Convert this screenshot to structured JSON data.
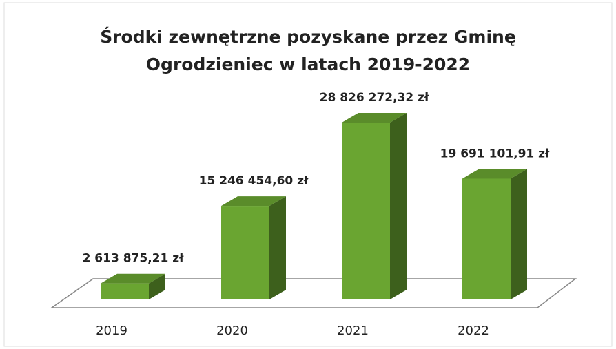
{
  "chart_data": {
    "type": "bar3d",
    "title": "Środki zewnętrzne pozyskane przez Gminę Ogrodzieniec w latach 2019-2022",
    "categories": [
      "2019",
      "2020",
      "2021",
      "2022"
    ],
    "values": [
      2613875.21,
      15246454.6,
      28826272.32,
      19691101.91
    ],
    "value_labels": [
      "2 613 875,21 zł",
      "15 246 454,60 zł",
      "28 826 272,32 zł",
      "19 691 101,91 zł"
    ],
    "color": "#6aa531"
  }
}
